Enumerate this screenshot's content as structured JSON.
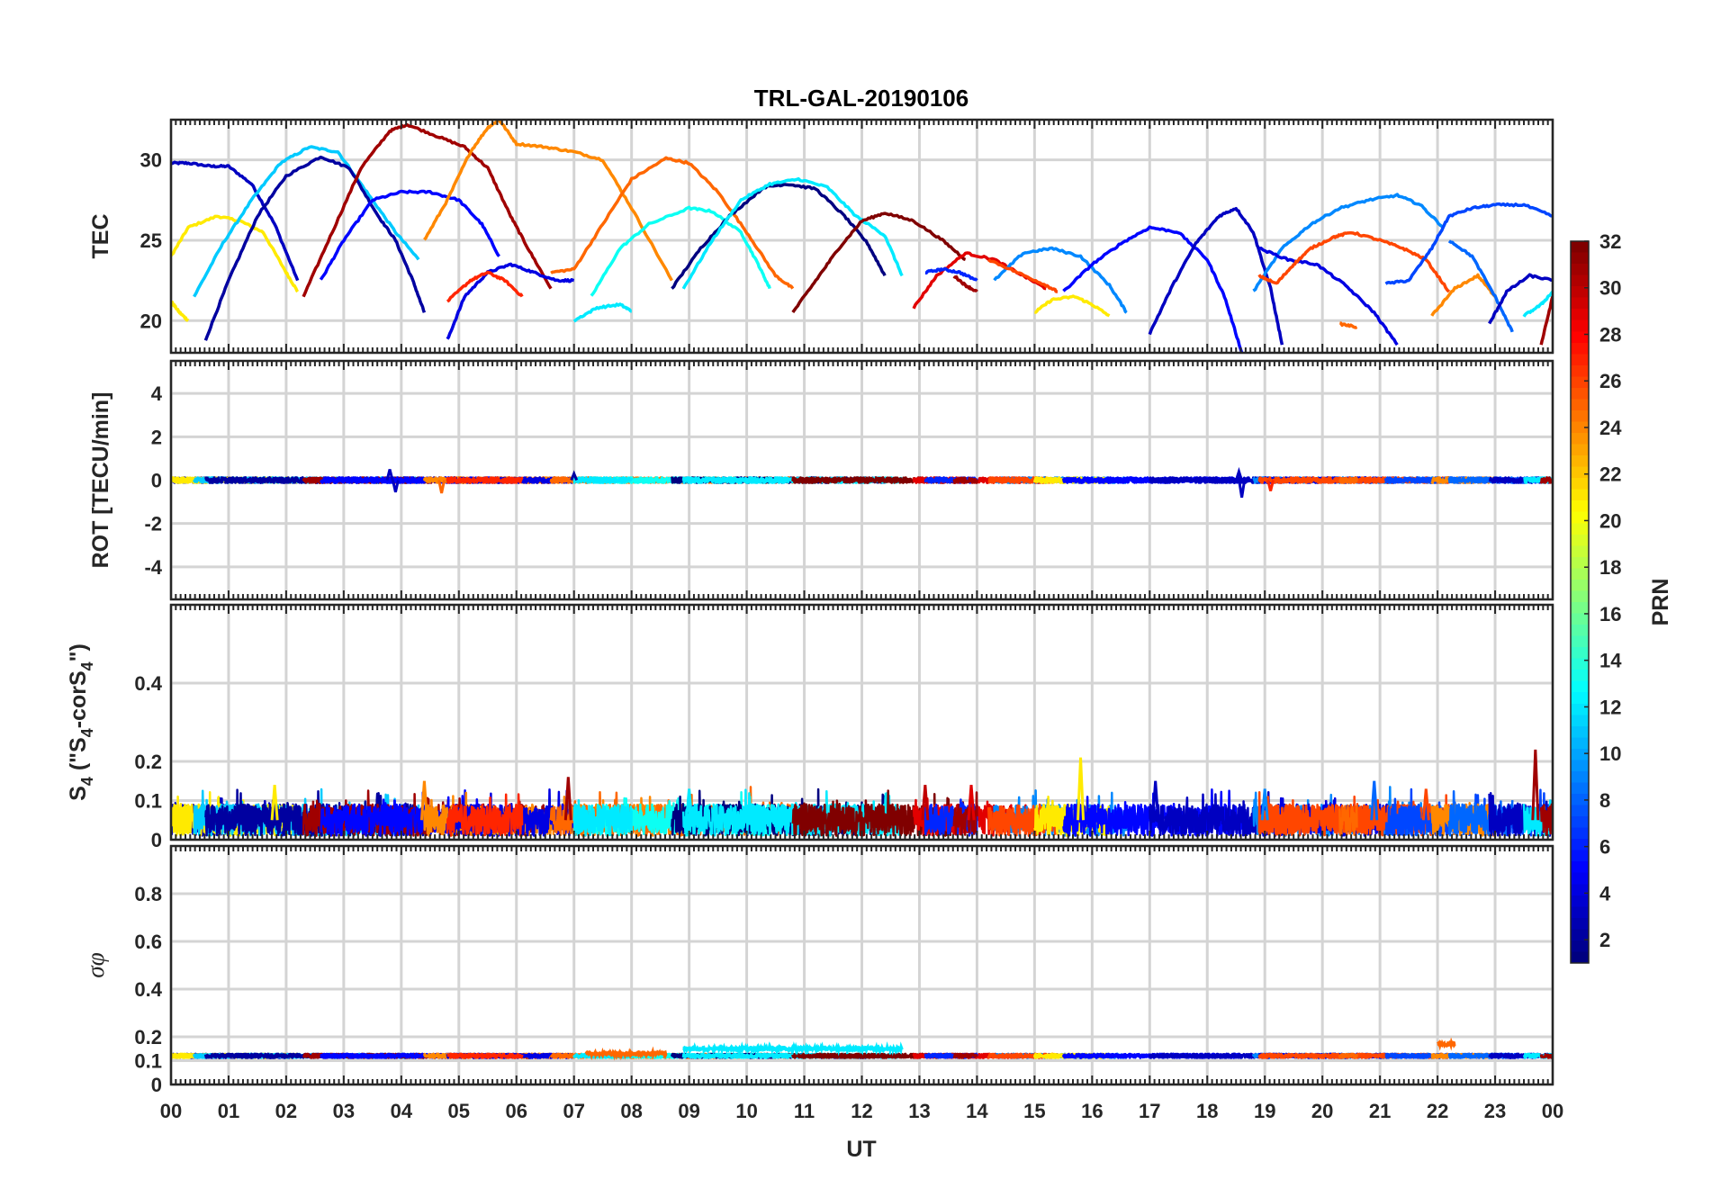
{
  "chart_data": {
    "type": "line",
    "title": "TRL-GAL-20190106",
    "xlabel": "UT",
    "x_ticks": [
      "00",
      "01",
      "02",
      "03",
      "04",
      "05",
      "06",
      "07",
      "08",
      "09",
      "10",
      "11",
      "12",
      "13",
      "14",
      "15",
      "16",
      "17",
      "18",
      "19",
      "20",
      "21",
      "22",
      "23",
      "00"
    ],
    "xlim": [
      0,
      24
    ],
    "colorbar": {
      "label": "PRN",
      "range": [
        1,
        32
      ],
      "ticks": [
        "2",
        "4",
        "6",
        "8",
        "10",
        "12",
        "14",
        "16",
        "18",
        "20",
        "22",
        "24",
        "26",
        "28",
        "30",
        "32"
      ]
    },
    "panels": [
      {
        "name": "tec",
        "ylabel": "TEC",
        "ylim": [
          18,
          32.5
        ],
        "yticks": [
          "20",
          "25",
          "30"
        ],
        "series": [
          {
            "prn": 3,
            "x": [
              0,
              0.3,
              0.7,
              1.0,
              1.4,
              1.8,
              2.2
            ],
            "y": [
              29.8,
              29.8,
              29.6,
              29.6,
              28.5,
              26,
              22.5
            ]
          },
          {
            "prn": 21,
            "x": [
              0,
              0.3,
              0.8,
              1.2,
              1.6,
              2.0,
              2.2
            ],
            "y": [
              24,
              25.8,
              26.5,
              26.2,
              25.5,
              23,
              21.8
            ]
          },
          {
            "prn": 21,
            "x": [
              0,
              0.15,
              0.3
            ],
            "y": [
              21.2,
              20.5,
              20
            ]
          },
          {
            "prn": 11,
            "x": [
              0.4,
              0.9,
              1.4,
              1.9,
              2.4,
              2.9,
              3.4,
              3.9,
              4.3
            ],
            "y": [
              21.5,
              24.8,
              27.5,
              29.8,
              30.8,
              30.5,
              28,
              25.5,
              23.8
            ]
          },
          {
            "prn": 2,
            "x": [
              0.6,
              1.0,
              1.5,
              2.0,
              2.6,
              3.1,
              3.6,
              3.9,
              4.2,
              4.4
            ],
            "y": [
              18.8,
              22.5,
              26.5,
              29,
              30.2,
              29.5,
              26.5,
              25,
              22.5,
              20.5
            ]
          },
          {
            "prn": 31,
            "x": [
              2.3,
              2.8,
              3.3,
              3.8,
              4.1,
              4.6,
              5.1,
              5.5,
              5.9,
              6.2,
              6.6
            ],
            "y": [
              21.5,
              25.5,
              29.5,
              31.8,
              32.2,
              31.5,
              30.8,
              29.5,
              26.5,
              24.5,
              22
            ]
          },
          {
            "prn": 5,
            "x": [
              2.6,
              3.0,
              3.5,
              4.0,
              4.5,
              5.0,
              5.4,
              5.7
            ],
            "y": [
              22.5,
              25,
              27.5,
              28,
              28,
              27.5,
              26,
              24
            ]
          },
          {
            "prn": 24,
            "x": [
              4.4,
              4.8,
              5.2,
              5.5,
              5.7,
              6.0,
              6.5,
              7.0,
              7.5,
              8.0,
              8.7
            ],
            "y": [
              25,
              27.5,
              30.5,
              32,
              32.5,
              31,
              30.8,
              30.5,
              30,
              27,
              22.5
            ]
          },
          {
            "prn": 4,
            "x": [
              4.8,
              5.1,
              5.5,
              5.9,
              6.3,
              6.7,
              7.0
            ],
            "y": [
              18.8,
              21.5,
              23,
              23.5,
              23,
              22.5,
              22.5
            ]
          },
          {
            "prn": 27,
            "x": [
              4.8,
              5.2,
              5.5,
              5.8,
              6.1
            ],
            "y": [
              21.2,
              22.5,
              23,
              22.5,
              21.5
            ]
          },
          {
            "prn": 25,
            "x": [
              6.6,
              7.0,
              7.5,
              8.0,
              8.6,
              9.0,
              9.5,
              10.0,
              10.5,
              10.8
            ],
            "y": [
              23,
              23.2,
              26,
              28.8,
              30.1,
              29.8,
              28,
              25.5,
              22.8,
              22
            ]
          },
          {
            "prn": 13,
            "x": [
              7.3,
              7.8,
              8.3,
              9.0,
              9.4,
              9.9,
              10.2,
              10.4
            ],
            "y": [
              21.5,
              24.5,
              26,
              27,
              26.8,
              25.5,
              23.5,
              22
            ]
          },
          {
            "prn": 12,
            "x": [
              7.0,
              7.4,
              7.8,
              8.0
            ],
            "y": [
              20,
              20.8,
              21,
              20.6
            ]
          },
          {
            "prn": 1,
            "x": [
              8.7,
              9.2,
              9.7,
              10.3,
              10.7,
              11.2,
              11.7,
              12.1,
              12.4
            ],
            "y": [
              22,
              24.5,
              26.5,
              28.3,
              28.5,
              28.2,
              26.5,
              24.8,
              22.8
            ]
          },
          {
            "prn": 12,
            "x": [
              8.9,
              9.4,
              9.9,
              10.4,
              10.9,
              11.4,
              11.9,
              12.4,
              12.7
            ],
            "y": [
              22,
              25,
              27.5,
              28.5,
              28.8,
              28.3,
              26.5,
              25.3,
              22.8
            ]
          },
          {
            "prn": 32,
            "x": [
              10.8,
              11.2,
              11.6,
              12.0,
              12.4,
              12.9,
              13.4,
              13.8
            ],
            "y": [
              20.5,
              22.5,
              24.5,
              26.2,
              26.7,
              26.2,
              25,
              23.8
            ]
          },
          {
            "prn": 29,
            "x": [
              12.9,
              13.3,
              13.8,
              14.3,
              14.8,
              15.2
            ],
            "y": [
              20.8,
              22.8,
              24.2,
              23.8,
              22.8,
              22
            ]
          },
          {
            "prn": 6,
            "x": [
              13.1,
              13.4,
              13.7,
              14.0
            ],
            "y": [
              23,
              23.2,
              23,
              22.5
            ]
          },
          {
            "prn": 31,
            "x": [
              13.6,
              13.8,
              14.0
            ],
            "y": [
              22.8,
              22.2,
              21.8
            ]
          },
          {
            "prn": 9,
            "x": [
              14.3,
              14.8,
              15.3,
              15.8,
              16.3,
              16.6
            ],
            "y": [
              22.5,
              24.2,
              24.5,
              24,
              22.2,
              20.5
            ]
          },
          {
            "prn": 26,
            "x": [
              14.2,
              14.7,
              15.2,
              15.4
            ],
            "y": [
              23.8,
              23,
              22.2,
              21.8
            ]
          },
          {
            "prn": 21,
            "x": [
              15.0,
              15.3,
              15.7,
              16.0,
              16.3
            ],
            "y": [
              20.5,
              21.3,
              21.5,
              21,
              20.3
            ]
          },
          {
            "prn": 5,
            "x": [
              15.5,
              16.0,
              16.5,
              17.0,
              17.5,
              18.0,
              18.3,
              18.6
            ],
            "y": [
              21.8,
              23.5,
              24.8,
              25.8,
              25.5,
              23.8,
              21.5,
              18
            ]
          },
          {
            "prn": 3,
            "x": [
              17.0,
              17.4,
              17.8,
              18.2,
              18.5,
              18.8,
              19.1,
              19.3
            ],
            "y": [
              19.2,
              22.2,
              24.8,
              26.5,
              27,
              25.5,
              22,
              18.5
            ]
          },
          {
            "prn": 9,
            "x": [
              18.8,
              19.3,
              19.8,
              20.3,
              20.8,
              21.3,
              21.7,
              22.1
            ],
            "y": [
              21.8,
              24.5,
              26,
              27,
              27.5,
              27.8,
              27.2,
              25.8
            ]
          },
          {
            "prn": 4,
            "x": [
              18.9,
              19.4,
              19.9,
              20.4,
              20.9,
              21.3
            ],
            "y": [
              24.5,
              23.8,
              23.5,
              22.2,
              20.5,
              18.5
            ]
          },
          {
            "prn": 26,
            "x": [
              18.9,
              19.2,
              19.5,
              19.8,
              20.2,
              20.5,
              21.0,
              21.4,
              21.8,
              22.2
            ],
            "y": [
              22.8,
              22.3,
              23.5,
              24.5,
              25.2,
              25.5,
              25,
              24.5,
              23.8,
              21.8
            ]
          },
          {
            "prn": 25,
            "x": [
              20.3,
              20.6
            ],
            "y": [
              19.8,
              19.6
            ]
          },
          {
            "prn": 7,
            "x": [
              21.1,
              21.5,
              21.9,
              22.2,
              22.6,
              23.0,
              23.5,
              24.0
            ],
            "y": [
              22.3,
              22.5,
              24.5,
              26.5,
              27,
              27.2,
              27.2,
              26.5
            ]
          },
          {
            "prn": 24,
            "x": [
              21.9,
              22.3,
              22.7,
              23.0
            ],
            "y": [
              20.3,
              22,
              22.8,
              21.5
            ]
          },
          {
            "prn": 8,
            "x": [
              22.2,
              22.6,
              23.0,
              23.3
            ],
            "y": [
              25,
              24,
              21.5,
              19.3
            ]
          },
          {
            "prn": 3,
            "x": [
              22.9,
              23.2,
              23.6,
              24.0
            ],
            "y": [
              19.8,
              21.8,
              22.8,
              22.5
            ]
          },
          {
            "prn": 12,
            "x": [
              23.5,
              23.8,
              24.0
            ],
            "y": [
              20.3,
              21,
              21.8
            ]
          },
          {
            "prn": 31,
            "x": [
              23.8,
              24.0
            ],
            "y": [
              18.5,
              21.5
            ]
          }
        ]
      },
      {
        "name": "rot",
        "ylabel": "ROT [TECU/min]",
        "ylim": [
          -5.5,
          5.5
        ],
        "yticks": [
          "-4",
          "-2",
          "0",
          "2",
          "4"
        ],
        "noise_amplitude": 0.12,
        "spikes": [
          {
            "x": 3.8,
            "y": 0.5,
            "prn": 3
          },
          {
            "x": 3.9,
            "y": -0.55,
            "prn": 3
          },
          {
            "x": 4.7,
            "y": -0.6,
            "prn": 25
          },
          {
            "x": 7.0,
            "y": 0.3,
            "prn": 2
          },
          {
            "x": 18.6,
            "y": -0.8,
            "prn": 3
          },
          {
            "x": 18.55,
            "y": 0.4,
            "prn": 3
          },
          {
            "x": 19.1,
            "y": -0.5,
            "prn": 27
          }
        ]
      },
      {
        "name": "s4",
        "ylabel": "S4 (\"S4-corS4\")",
        "ylim": [
          0,
          0.6
        ],
        "yticks": [
          "0",
          "0.1",
          "0.2",
          "0.4"
        ],
        "baseline": 0.05,
        "noise_amplitude": 0.04,
        "spikes": [
          {
            "x": 1.8,
            "y": 0.14,
            "prn": 21
          },
          {
            "x": 4.4,
            "y": 0.15,
            "prn": 24
          },
          {
            "x": 6.9,
            "y": 0.16,
            "prn": 31
          },
          {
            "x": 9.0,
            "y": 0.13,
            "prn": 12
          },
          {
            "x": 13.1,
            "y": 0.14,
            "prn": 30
          },
          {
            "x": 13.9,
            "y": 0.14,
            "prn": 29
          },
          {
            "x": 15.8,
            "y": 0.21,
            "prn": 21
          },
          {
            "x": 17.1,
            "y": 0.15,
            "prn": 3
          },
          {
            "x": 19.0,
            "y": 0.13,
            "prn": 9
          },
          {
            "x": 20.9,
            "y": 0.15,
            "prn": 8
          },
          {
            "x": 21.8,
            "y": 0.13,
            "prn": 26
          },
          {
            "x": 23.7,
            "y": 0.23,
            "prn": 31
          }
        ]
      },
      {
        "name": "sigma",
        "ylabel": "σφ",
        "ylim": [
          0,
          1
        ],
        "yticks": [
          "0",
          "0.1",
          "0.2",
          "0.4",
          "0.6",
          "0.8"
        ],
        "baseline": 0.12,
        "noise_amplitude": 0.008,
        "highlights": [
          {
            "x_start": 8.9,
            "x_end": 12.7,
            "y": 0.15,
            "prn": 12
          },
          {
            "x_start": 7.2,
            "x_end": 8.6,
            "y": 0.13,
            "prn": 25
          },
          {
            "x_start": 22.0,
            "x_end": 22.3,
            "y": 0.17,
            "prn": 25
          }
        ]
      }
    ]
  }
}
